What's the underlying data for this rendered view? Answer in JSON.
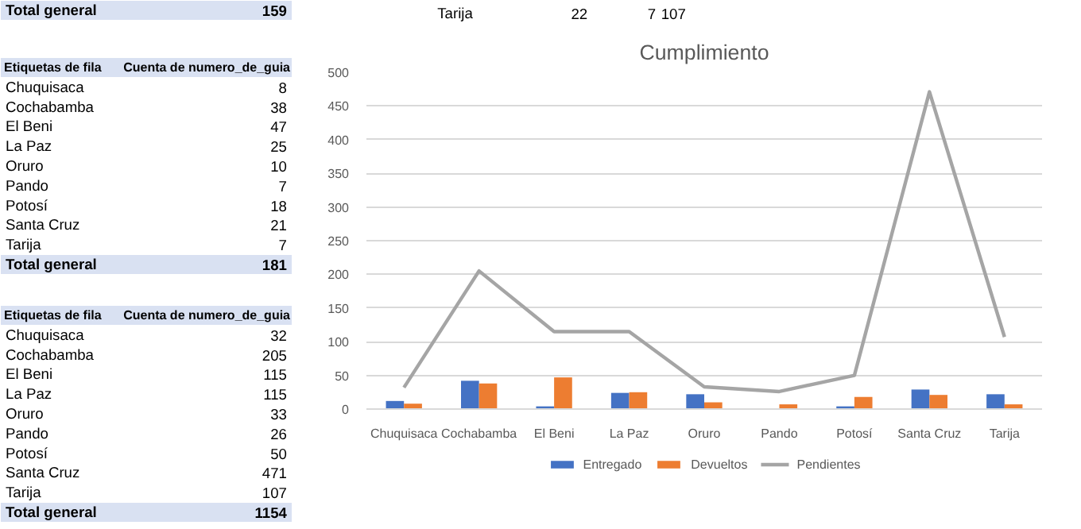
{
  "chart_data": [
    {
      "type": "other",
      "annotations": [
        "Total general",
        "159"
      ]
    },
    {
      "type": "other",
      "data_labels": true,
      "annotations": [
        "Etiquetas de fila",
        "Cuenta de numero_de_guia",
        "Total general",
        "181"
      ],
      "categories": [
        "Chuquisaca",
        "Cochabamba",
        "El Beni",
        "La Paz",
        "Oruro",
        "Pando",
        "Potosí",
        "Santa Cruz",
        "Tarija"
      ],
      "values": [
        8,
        38,
        47,
        25,
        10,
        7,
        18,
        21,
        7
      ]
    },
    {
      "type": "other",
      "data_labels": true,
      "annotations": [
        "Etiquetas de fila",
        "Cuenta de numero_de_guia",
        "Total general",
        "1154"
      ],
      "categories": [
        "Chuquisaca",
        "Cochabamba",
        "El Beni",
        "La Paz",
        "Oruro",
        "Pando",
        "Potosí",
        "Santa Cruz",
        "Tarija"
      ],
      "values": [
        32,
        205,
        115,
        115,
        33,
        26,
        50,
        471,
        107
      ]
    },
    {
      "type": "other",
      "annotations": [
        "Tarija",
        "22",
        "7",
        "107"
      ]
    },
    {
      "type": "bar",
      "title": "Cumplimiento",
      "categories": [
        "Chuquisaca",
        "Cochabamba",
        "El Beni",
        "La Paz",
        "Oruro",
        "Pando",
        "Potosí",
        "Santa Cruz",
        "Tarija"
      ],
      "ylim": [
        0,
        500
      ],
      "yticks": [
        0,
        50,
        100,
        150,
        200,
        250,
        300,
        350,
        400,
        450,
        500
      ],
      "grid": "y",
      "legend": "bottom",
      "series": [
        {
          "name": "Entregado",
          "color": "#4472c4",
          "values": [
            12,
            42,
            4,
            24,
            22,
            0,
            4,
            29,
            22
          ]
        },
        {
          "name": "Devueltos",
          "color": "#ed7d31",
          "values": [
            8,
            38,
            47,
            25,
            10,
            7,
            18,
            21,
            7
          ]
        },
        {
          "name": "Pendientes",
          "type": "line",
          "color": "#a5a5a5",
          "values": [
            32,
            205,
            115,
            115,
            33,
            26,
            50,
            471,
            107
          ]
        }
      ]
    }
  ]
}
